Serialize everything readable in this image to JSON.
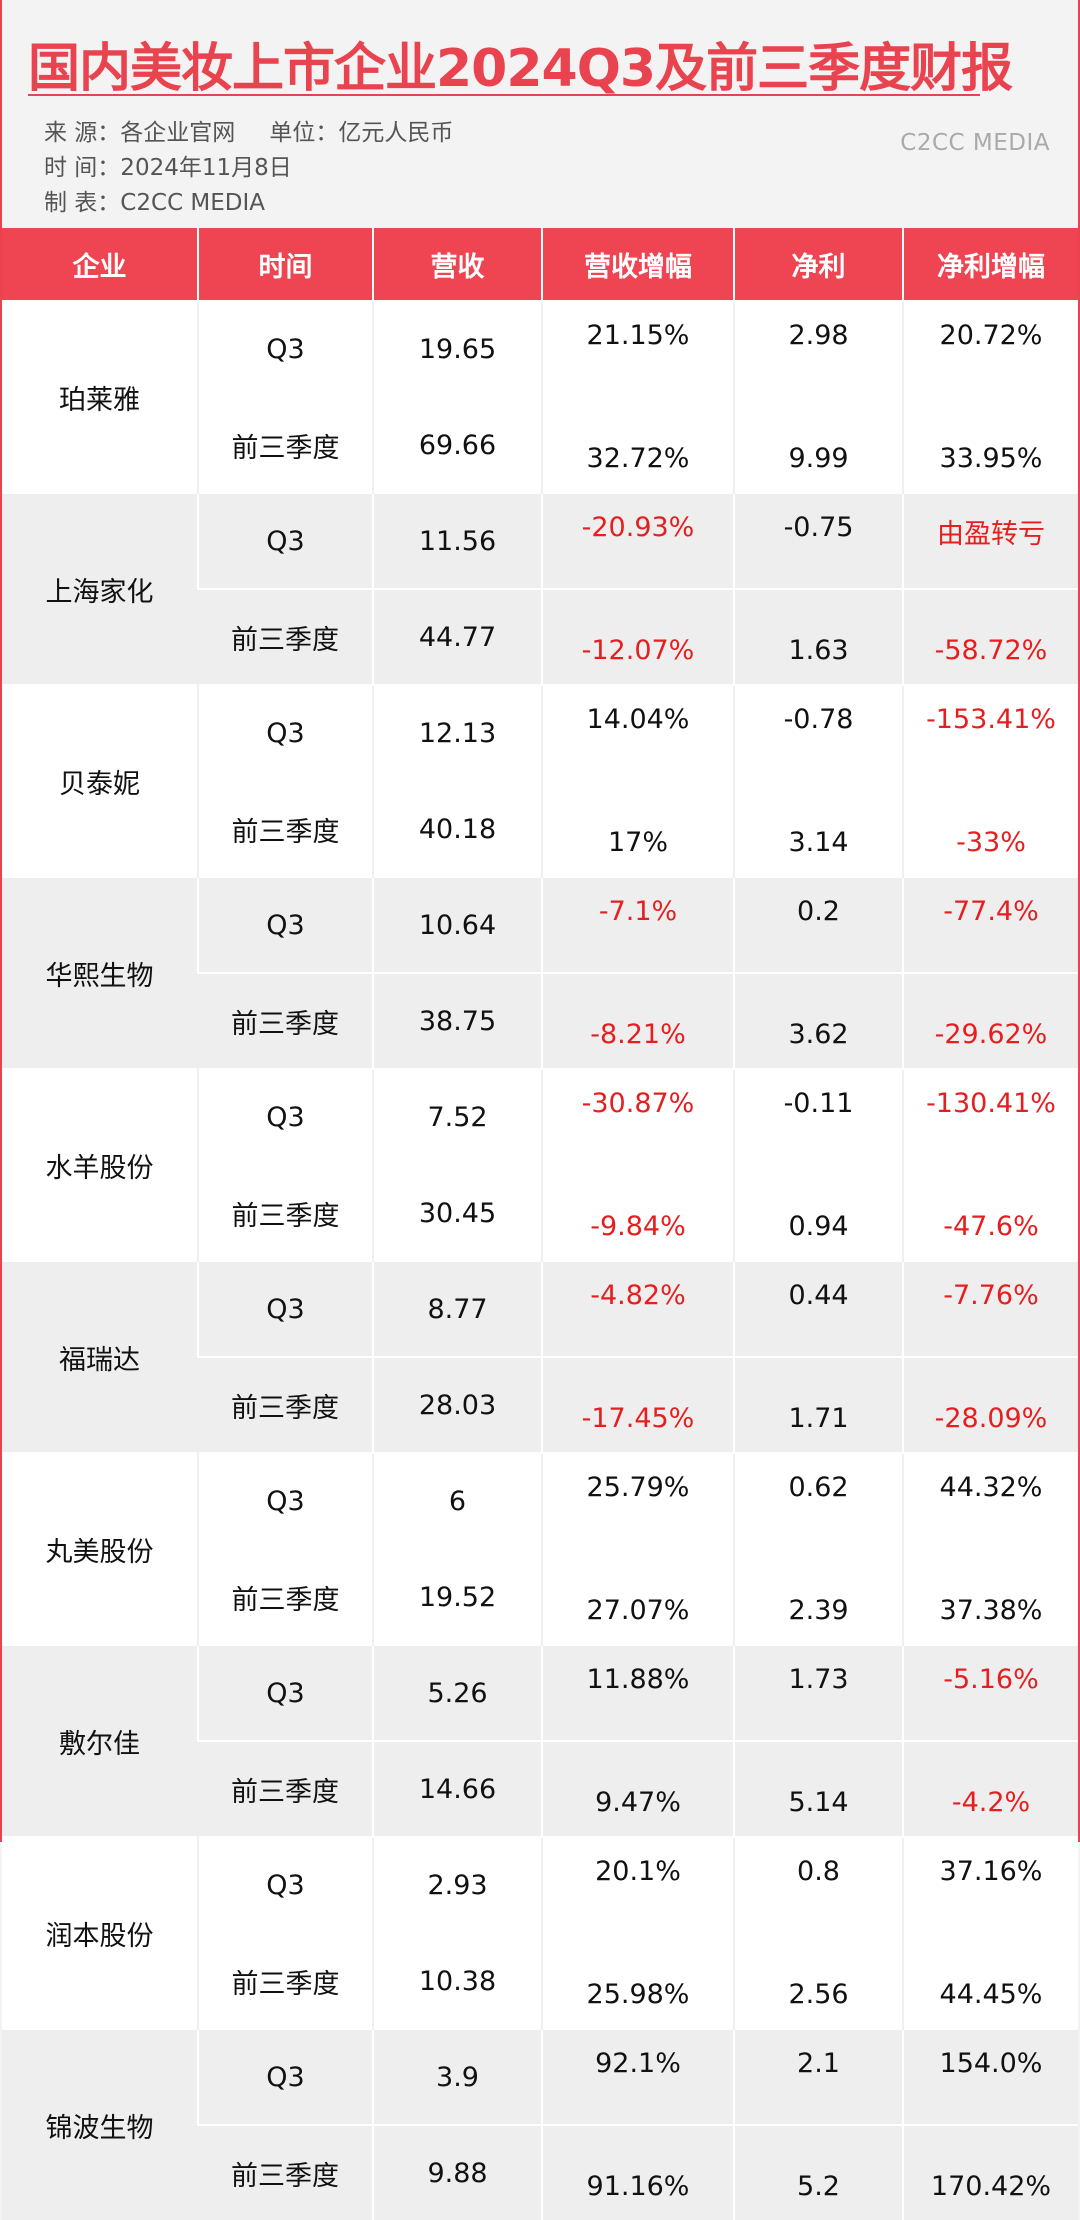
{
  "title": "国内美妆上市企业2024Q3及前三季度财报",
  "meta": {
    "source": "来  源：各企业官网",
    "unit": "单位：亿元人民币",
    "date": "时  间：2024年11月8日",
    "maker": "制  表：C2CC  MEDIA"
  },
  "brand": "C2CC MEDIA",
  "colors": {
    "accent": "#ef4451",
    "negative": "#e51f1f"
  },
  "chart_data": {
    "type": "table",
    "title": "国内美妆上市企业2024Q3及前三季度财报",
    "columns": [
      "企业",
      "时间",
      "营收",
      "营收增幅",
      "净利",
      "净利增幅"
    ],
    "rows": [
      {
        "company": "珀莱雅",
        "periods": [
          {
            "period": "Q3",
            "revenue": "19.65",
            "revenue_growth": "21.15%",
            "revenue_growth_neg": false,
            "profit": "2.98",
            "profit_growth": "20.72%",
            "profit_growth_neg": false
          },
          {
            "period": "前三季度",
            "revenue": "69.66",
            "revenue_growth": "32.72%",
            "revenue_growth_neg": false,
            "profit": "9.99",
            "profit_growth": "33.95%",
            "profit_growth_neg": false
          }
        ]
      },
      {
        "company": "上海家化",
        "periods": [
          {
            "period": "Q3",
            "revenue": "11.56",
            "revenue_growth": "-20.93%",
            "revenue_growth_neg": true,
            "profit": "-0.75",
            "profit_growth": "由盈转亏",
            "profit_growth_neg": true
          },
          {
            "period": "前三季度",
            "revenue": "44.77",
            "revenue_growth": "-12.07%",
            "revenue_growth_neg": true,
            "profit": "1.63",
            "profit_growth": "-58.72%",
            "profit_growth_neg": true
          }
        ]
      },
      {
        "company": "贝泰妮",
        "periods": [
          {
            "period": "Q3",
            "revenue": "12.13",
            "revenue_growth": "14.04%",
            "revenue_growth_neg": false,
            "profit": "-0.78",
            "profit_growth": "-153.41%",
            "profit_growth_neg": true
          },
          {
            "period": "前三季度",
            "revenue": "40.18",
            "revenue_growth": "17%",
            "revenue_growth_neg": false,
            "profit": "3.14",
            "profit_growth": "-33%",
            "profit_growth_neg": true
          }
        ]
      },
      {
        "company": "华熙生物",
        "periods": [
          {
            "period": "Q3",
            "revenue": "10.64",
            "revenue_growth": "-7.1%",
            "revenue_growth_neg": true,
            "profit": "0.2",
            "profit_growth": "-77.4%",
            "profit_growth_neg": true
          },
          {
            "period": "前三季度",
            "revenue": "38.75",
            "revenue_growth": "-8.21%",
            "revenue_growth_neg": true,
            "profit": "3.62",
            "profit_growth": "-29.62%",
            "profit_growth_neg": true
          }
        ]
      },
      {
        "company": "水羊股份",
        "periods": [
          {
            "period": "Q3",
            "revenue": "7.52",
            "revenue_growth": "-30.87%",
            "revenue_growth_neg": true,
            "profit": "-0.11",
            "profit_growth": "-130.41%",
            "profit_growth_neg": true
          },
          {
            "period": "前三季度",
            "revenue": "30.45",
            "revenue_growth": "-9.84%",
            "revenue_growth_neg": true,
            "profit": "0.94",
            "profit_growth": "-47.6%",
            "profit_growth_neg": true
          }
        ]
      },
      {
        "company": "福瑞达",
        "periods": [
          {
            "period": "Q3",
            "revenue": "8.77",
            "revenue_growth": "-4.82%",
            "revenue_growth_neg": true,
            "profit": "0.44",
            "profit_growth": "-7.76%",
            "profit_growth_neg": true
          },
          {
            "period": "前三季度",
            "revenue": "28.03",
            "revenue_growth": "-17.45%",
            "revenue_growth_neg": true,
            "profit": "1.71",
            "profit_growth": "-28.09%",
            "profit_growth_neg": true
          }
        ]
      },
      {
        "company": "丸美股份",
        "periods": [
          {
            "period": "Q3",
            "revenue": "6",
            "revenue_growth": "25.79%",
            "revenue_growth_neg": false,
            "profit": "0.62",
            "profit_growth": "44.32%",
            "profit_growth_neg": false
          },
          {
            "period": "前三季度",
            "revenue": "19.52",
            "revenue_growth": "27.07%",
            "revenue_growth_neg": false,
            "profit": "2.39",
            "profit_growth": "37.38%",
            "profit_growth_neg": false
          }
        ]
      },
      {
        "company": "敷尔佳",
        "periods": [
          {
            "period": "Q3",
            "revenue": "5.26",
            "revenue_growth": "11.88%",
            "revenue_growth_neg": false,
            "profit": "1.73",
            "profit_growth": "-5.16%",
            "profit_growth_neg": true
          },
          {
            "period": "前三季度",
            "revenue": "14.66",
            "revenue_growth": "9.47%",
            "revenue_growth_neg": false,
            "profit": "5.14",
            "profit_growth": "-4.2%",
            "profit_growth_neg": true
          }
        ]
      },
      {
        "company": "润本股份",
        "periods": [
          {
            "period": "Q3",
            "revenue": "2.93",
            "revenue_growth": "20.1%",
            "revenue_growth_neg": false,
            "profit": "0.8",
            "profit_growth": "37.16%",
            "profit_growth_neg": false
          },
          {
            "period": "前三季度",
            "revenue": "10.38",
            "revenue_growth": "25.98%",
            "revenue_growth_neg": false,
            "profit": "2.56",
            "profit_growth": "44.45%",
            "profit_growth_neg": false
          }
        ]
      },
      {
        "company": "锦波生物",
        "periods": [
          {
            "period": "Q3",
            "revenue": "3.9",
            "revenue_growth": "92.1%",
            "revenue_growth_neg": false,
            "profit": "2.1",
            "profit_growth": "154.0%",
            "profit_growth_neg": false
          },
          {
            "period": "前三季度",
            "revenue": "9.88",
            "revenue_growth": "91.16%",
            "revenue_growth_neg": false,
            "profit": "5.2",
            "profit_growth": "170.42%",
            "profit_growth_neg": false
          }
        ]
      }
    ]
  }
}
